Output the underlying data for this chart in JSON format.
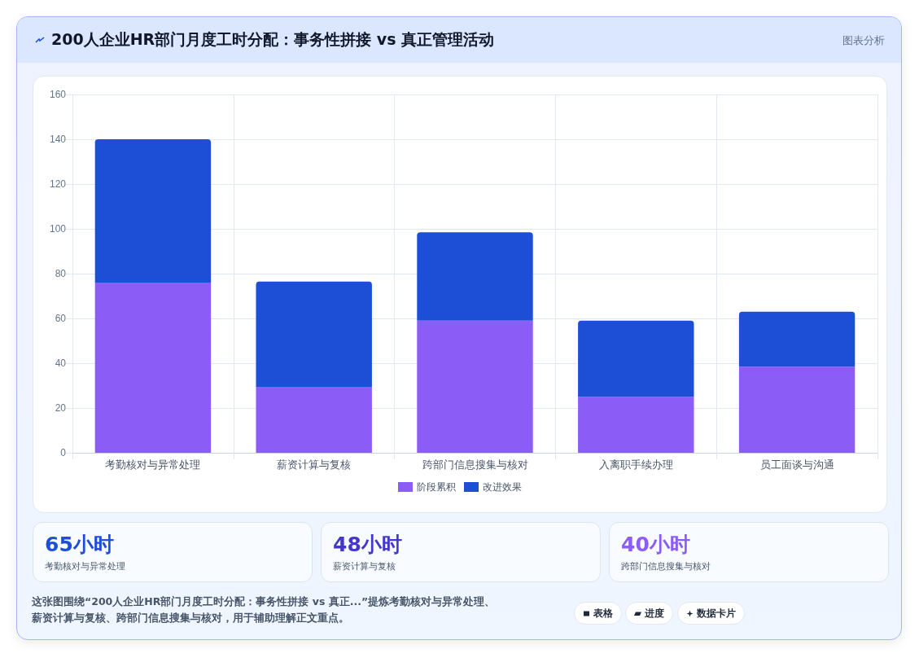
{
  "chart_data": {
    "type": "bar",
    "title": "200人企业HR部门月度工时分配：事务性拼接 vs 真正管理活动",
    "categories": [
      "考勤核对与异常处理",
      "薪资计算与复核",
      "跨部门信息搜集与核对",
      "入离职手续办理",
      "员工面谈与沟通"
    ],
    "series": [
      {
        "name": "阶段累积",
        "color": "#8b5cf6",
        "values": [
          76,
          29.5,
          59,
          25,
          38.5
        ]
      },
      {
        "name": "改进效果",
        "color": "#1c4fd6",
        "values": [
          64,
          47,
          39.5,
          34,
          24.5
        ]
      }
    ],
    "stacked": true,
    "ylim": [
      0,
      160
    ],
    "yticks": [
      0,
      20,
      40,
      60,
      80,
      100,
      120,
      140,
      160
    ],
    "grid": true,
    "legend": "bottom",
    "annotations": [
      "图表分析",
      "65小时",
      "考勤核对与异常处理",
      "48小时",
      "薪资计算与复核",
      "40小时",
      "跨部门信息搜集与核对",
      "这张图围绕“200人企业HR部门月度工时分配：事务性拼接 vs 真正...”提炼考勤核对与异常处理、薪资计算与复核、跨部门信息搜集与核对，用于辅助理解正文重点。",
      "表格",
      "进度",
      "数据卡片"
    ]
  }
}
